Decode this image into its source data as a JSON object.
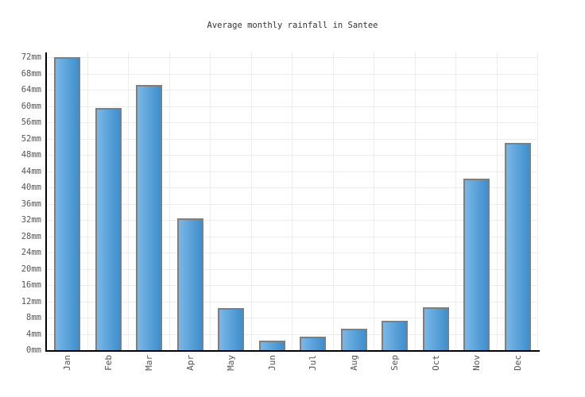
{
  "title": "Average monthly rainfall in Santee",
  "chart_data": {
    "type": "bar",
    "title": "Average monthly rainfall in Santee",
    "xlabel": "",
    "ylabel": "",
    "unit": "mm",
    "categories": [
      "Jan",
      "Feb",
      "Mar",
      "Apr",
      "May",
      "Jun",
      "Jul",
      "Aug",
      "Sep",
      "Oct",
      "Nov",
      "Dec"
    ],
    "values": [
      72.0,
      59.6,
      65.1,
      32.4,
      10.4,
      2.4,
      3.3,
      5.2,
      7.2,
      10.5,
      42.1,
      50.9
    ],
    "yticks": [
      "0mm",
      "4mm",
      "8mm",
      "12mm",
      "16mm",
      "20mm",
      "24mm",
      "28mm",
      "32mm",
      "36mm",
      "40mm",
      "44mm",
      "48mm",
      "52mm",
      "56mm",
      "60mm",
      "64mm",
      "68mm",
      "72mm"
    ],
    "ylim": [
      0,
      72
    ],
    "ytick_step": 4,
    "grid": true,
    "legend": false,
    "x_label_rotation": -90,
    "colors": {
      "bar_gradient_left": "#7ab7e8",
      "bar_gradient_right": "#3f8ecb",
      "bar_border": "#7f7f7f",
      "gridline": "#ededed",
      "axis": "#000000",
      "tick_label": "#555555",
      "title": "#333333",
      "background": "#ffffff"
    }
  }
}
